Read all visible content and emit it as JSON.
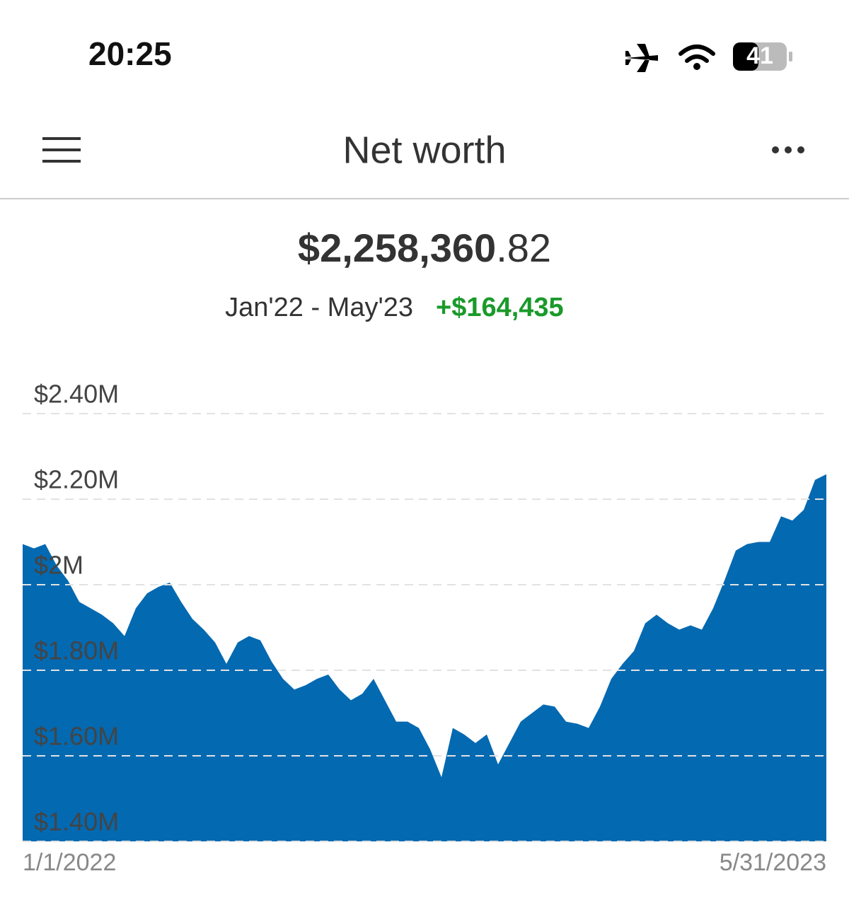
{
  "status_bar": {
    "time": "20:25",
    "battery": "41"
  },
  "header": {
    "title": "Net worth"
  },
  "summary": {
    "amount_whole": "$2,258,360",
    "amount_cents": ".82",
    "range": "Jan'22 - May'23",
    "change": "+$164,435"
  },
  "chart_data": {
    "type": "area",
    "color": "#0369b1",
    "grid": true,
    "categories": [
      "1/1/2022",
      null,
      null,
      null,
      null,
      null,
      null,
      null,
      null,
      null,
      null,
      null,
      null,
      null,
      null,
      null,
      null,
      null,
      null,
      null,
      null,
      null,
      null,
      null,
      null,
      null,
      null,
      null,
      null,
      null,
      null,
      null,
      null,
      null,
      null,
      null,
      null,
      null,
      null,
      null,
      null,
      null,
      null,
      null,
      null,
      null,
      null,
      null,
      null,
      null,
      null,
      null,
      null,
      null,
      null,
      null,
      null,
      null,
      null,
      null,
      null,
      null,
      null,
      null,
      null,
      null,
      null,
      null,
      null,
      null,
      null,
      "5/31/2023"
    ],
    "values": [
      2095000,
      2085000,
      2095000,
      2045000,
      2010000,
      1960000,
      1945000,
      1930000,
      1910000,
      1880000,
      1945000,
      1980000,
      1995000,
      2005000,
      1960000,
      1920000,
      1895000,
      1865000,
      1815000,
      1865000,
      1880000,
      1870000,
      1820000,
      1780000,
      1755000,
      1765000,
      1780000,
      1790000,
      1755000,
      1730000,
      1745000,
      1780000,
      1730000,
      1680000,
      1680000,
      1665000,
      1615000,
      1550000,
      1665000,
      1650000,
      1630000,
      1650000,
      1580000,
      1630000,
      1680000,
      1700000,
      1720000,
      1715000,
      1680000,
      1675000,
      1665000,
      1715000,
      1780000,
      1815000,
      1845000,
      1910000,
      1930000,
      1910000,
      1895000,
      1905000,
      1895000,
      1945000,
      2010000,
      2080000,
      2095000,
      2100000,
      2100000,
      2160000,
      2150000,
      2175000,
      2245000,
      2258360.82
    ],
    "ylim": [
      1400000,
      2400000
    ],
    "yticks": [
      {
        "value": 1400000,
        "label": "$1.40M"
      },
      {
        "value": 1600000,
        "label": "$1.60M"
      },
      {
        "value": 1800000,
        "label": "$1.80M"
      },
      {
        "value": 2000000,
        "label": "$2M"
      },
      {
        "value": 2200000,
        "label": "$2.20M"
      },
      {
        "value": 2400000,
        "label": "$2.40M"
      }
    ]
  }
}
